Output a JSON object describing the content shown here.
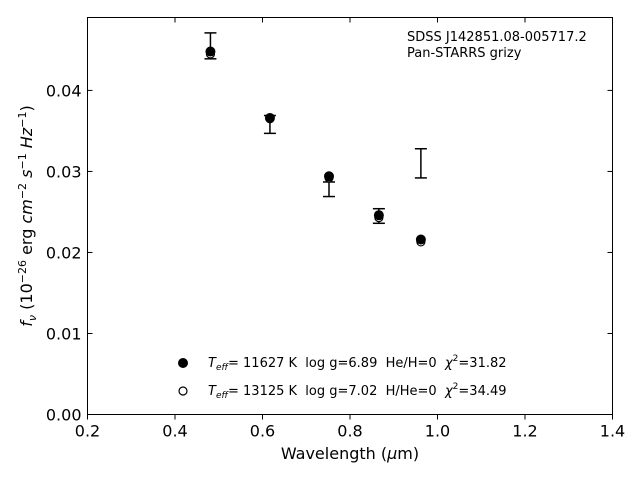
{
  "chart_data": {
    "type": "scatter",
    "annotation": [
      "SDSS J142851.08-005717.2",
      "Pan-STARRS grizy"
    ],
    "xlabel": "Wavelength (μm)",
    "ylabel": "f_ν (10^-26 erg cm^-2 s^-1 Hz^-1)",
    "xlim": [
      0.2,
      1.4
    ],
    "ylim": [
      0.0,
      0.049
    ],
    "xticks": [
      0.2,
      0.4,
      0.6,
      0.8,
      1.0,
      1.2,
      1.4
    ],
    "xtick_labels": [
      "0.2",
      "0.4",
      "0.6",
      "0.8",
      "1.0",
      "1.2",
      "1.4"
    ],
    "yticks": [
      0.0,
      0.01,
      0.02,
      0.03,
      0.04
    ],
    "ytick_labels": [
      "0.00",
      "0.01",
      "0.02",
      "0.03",
      "0.04"
    ],
    "grid": false,
    "legend_position": "bottom-center",
    "observed": {
      "x": [
        0.481,
        0.617,
        0.752,
        0.866,
        0.962
      ],
      "y": [
        0.0455,
        0.0358,
        0.0278,
        0.0245,
        0.031
      ],
      "err": [
        0.0016,
        0.0011,
        0.0009,
        0.0009,
        0.0018
      ]
    },
    "series": [
      {
        "name": "T_eff= 11627 K  log g=6.89  He/H=0  χ²=31.82",
        "legend": {
          "t_label": "T",
          "t_sub": "eff",
          "body": "= 11627 K  log g=6.89  He/H=0  ",
          "chi": "χ",
          "chi_sup": "2",
          "chi_val": "=31.82"
        },
        "marker": "filled-circle",
        "x": [
          0.481,
          0.617,
          0.752,
          0.866,
          0.962
        ],
        "y": [
          0.0448,
          0.0366,
          0.0294,
          0.0246,
          0.0216
        ]
      },
      {
        "name": "T_eff= 13125 K  log g=7.02  H/He=0  χ²=34.49",
        "legend": {
          "t_label": "T",
          "t_sub": "eff",
          "body": "= 13125 K  log g=7.02  H/He=0  ",
          "chi": "χ",
          "chi_sup": "2",
          "chi_val": "=34.49"
        },
        "marker": "open-circle",
        "x": [
          0.481,
          0.617,
          0.752,
          0.866,
          0.962
        ],
        "y": [
          0.0445,
          0.0365,
          0.0292,
          0.0243,
          0.0213
        ]
      }
    ]
  }
}
